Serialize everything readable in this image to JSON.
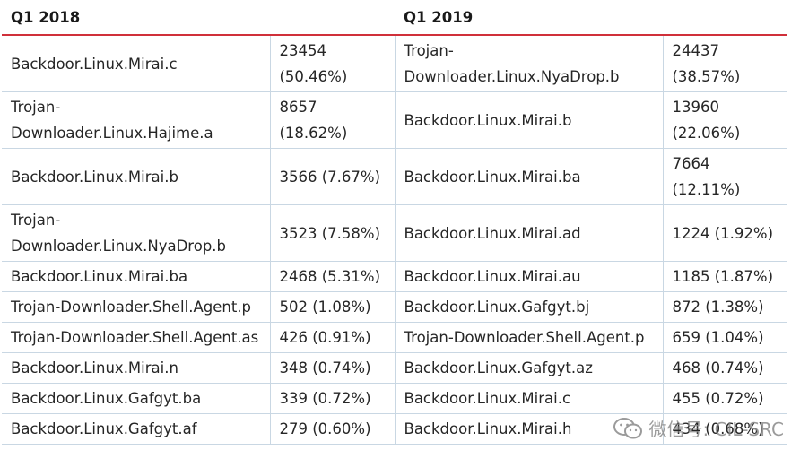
{
  "headers": {
    "q1_2018": "Q1 2018",
    "q1_2019": "Q1 2019"
  },
  "rows": [
    {
      "name_2018": "Backdoor.Linux.Mirai.c",
      "count_2018": "23454 (50.46%)",
      "name_2019": "Trojan-Downloader.Linux.NyaDrop.b",
      "count_2019": "24437 (38.57%)"
    },
    {
      "name_2018": "Trojan-Downloader.Linux.Hajime.a",
      "count_2018": "8657 (18.62%)",
      "name_2019": "Backdoor.Linux.Mirai.b",
      "count_2019": "13960 (22.06%)"
    },
    {
      "name_2018": "Backdoor.Linux.Mirai.b",
      "count_2018": "3566 (7.67%)",
      "name_2019": "Backdoor.Linux.Mirai.ba",
      "count_2019": "7664 (12.11%)"
    },
    {
      "name_2018": "Trojan-Downloader.Linux.NyaDrop.b",
      "count_2018": "3523 (7.58%)",
      "name_2019": "Backdoor.Linux.Mirai.ad",
      "count_2019": "1224 (1.92%)"
    },
    {
      "name_2018": "Backdoor.Linux.Mirai.ba",
      "count_2018": "2468 (5.31%)",
      "name_2019": "Backdoor.Linux.Mirai.au",
      "count_2019": "1185 (1.87%)"
    },
    {
      "name_2018": "Trojan-Downloader.Shell.Agent.p",
      "count_2018": "502 (1.08%)",
      "name_2019": "Backdoor.Linux.Gafgyt.bj",
      "count_2019": "872 (1.38%)"
    },
    {
      "name_2018": "Trojan-Downloader.Shell.Agent.as",
      "count_2018": "426 (0.91%)",
      "name_2019": "Trojan-Downloader.Shell.Agent.p",
      "count_2019": "659 (1.04%)"
    },
    {
      "name_2018": "Backdoor.Linux.Mirai.n",
      "count_2018": "348 (0.74%)",
      "name_2019": "Backdoor.Linux.Gafgyt.az",
      "count_2019": "468 (0.74%)"
    },
    {
      "name_2018": "Backdoor.Linux.Gafgyt.ba",
      "count_2018": "339 (0.72%)",
      "name_2019": "Backdoor.Linux.Mirai.c",
      "count_2019": "455 (0.72%)"
    },
    {
      "name_2018": "Backdoor.Linux.Gafgyt.af",
      "count_2018": "279 (0.60%)",
      "name_2019": "Backdoor.Linux.Mirai.h",
      "count_2019": "434 (0.68%)"
    }
  ],
  "watermark": {
    "text": "微信号: CIL-SRC",
    "icon": "wechat-icon"
  }
}
